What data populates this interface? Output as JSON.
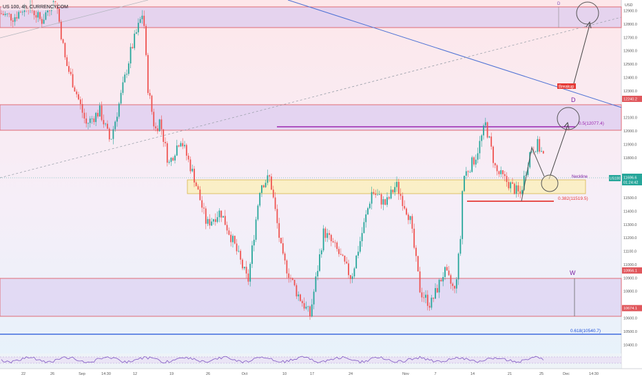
{
  "header": {
    "symbol_title": "US 100, 4h, CURRENCYCOM"
  },
  "price_axis": {
    "currency": "USD",
    "ticks": [
      "12900.0",
      "12800.0",
      "12700.0",
      "12600.0",
      "12500.0",
      "12400.0",
      "12300.0",
      "12100.0",
      "12000.0",
      "11900.0",
      "11800.0",
      "11500.0",
      "11400.0",
      "11300.0",
      "11200.0",
      "11100.0",
      "11000.0",
      "10900.0",
      "10800.0",
      "10600.0",
      "10500.0",
      "10400.0"
    ],
    "price_badges": [
      {
        "label": "12240.2",
        "value": 12240.2,
        "color": "#e0565b"
      },
      {
        "label": "10956.1",
        "value": 10956.1,
        "color": "#e0565b"
      },
      {
        "label": "10674.1",
        "value": 10674.1,
        "color": "#e0565b"
      }
    ],
    "current_price": {
      "symbol": "US100",
      "price": "11696.6",
      "countdown": "01:24:42",
      "value": 11696.6,
      "color": "#26a69a"
    }
  },
  "time_axis": {
    "ticks": [
      "22",
      "26",
      "Sep",
      "14:30",
      "12",
      "19",
      "26",
      "Oct",
      "10",
      "17",
      "24",
      "Nov",
      "7",
      "14",
      "21",
      "25",
      "Dec",
      "14:30"
    ]
  },
  "annotations": {
    "breakup_label": "Breakup",
    "point_d_top": "D",
    "point_d": "D",
    "point_w": "W",
    "neckline": "Neckline",
    "fib_05": "0.5(12077.4)",
    "fib_0382": "0.382(11519.5)",
    "fib_0618": "0.618(10540.7)"
  },
  "colors": {
    "bull": "#26a69a",
    "bear": "#ef5350",
    "zone_purple": "#d8c8f0",
    "zone_yellow": "#fbeec1",
    "trendline": "#4a6fd4",
    "fib_purple": "#9c27b0",
    "fib_red": "#e53935",
    "fib_blue": "#1e4fd8"
  },
  "chart_data": {
    "type": "candlestick",
    "title": "US 100, 4h, CURRENCYCOM",
    "x_ticks": [
      "22",
      "26",
      "Sep",
      "14:30",
      "12",
      "19",
      "26",
      "Oct",
      "10",
      "17",
      "24",
      "Nov",
      "7",
      "14",
      "21",
      "25",
      "Dec",
      "14:30"
    ],
    "ylim": [
      10350,
      12980
    ],
    "series": [
      {
        "name": "US100",
        "anchors": [
          [
            0,
            12880
          ],
          [
            20,
            12850
          ],
          [
            40,
            12950
          ],
          [
            60,
            12820
          ],
          [
            75,
            12960
          ],
          [
            82,
            12950
          ],
          [
            95,
            12520
          ],
          [
            110,
            12300
          ],
          [
            125,
            12050
          ],
          [
            145,
            12150
          ],
          [
            160,
            11920
          ],
          [
            175,
            12250
          ],
          [
            190,
            12600
          ],
          [
            208,
            12900
          ],
          [
            214,
            12350
          ],
          [
            225,
            12000
          ],
          [
            232,
            12080
          ],
          [
            245,
            11750
          ],
          [
            262,
            11950
          ],
          [
            272,
            11800
          ],
          [
            282,
            11650
          ],
          [
            300,
            11300
          ],
          [
            320,
            11400
          ],
          [
            340,
            11150
          ],
          [
            360,
            10870
          ],
          [
            378,
            11600
          ],
          [
            392,
            11650
          ],
          [
            410,
            11050
          ],
          [
            430,
            10800
          ],
          [
            450,
            10620
          ],
          [
            470,
            11250
          ],
          [
            490,
            11100
          ],
          [
            510,
            10900
          ],
          [
            540,
            11550
          ],
          [
            560,
            11450
          ],
          [
            575,
            11600
          ],
          [
            595,
            11350
          ],
          [
            610,
            10800
          ],
          [
            625,
            10700
          ],
          [
            645,
            10950
          ],
          [
            660,
            10800
          ],
          [
            668,
            11150
          ],
          [
            672,
            11650
          ],
          [
            690,
            11800
          ],
          [
            705,
            12050
          ],
          [
            720,
            11700
          ],
          [
            740,
            11600
          ],
          [
            755,
            11520
          ],
          [
            770,
            11850
          ],
          [
            780,
            11900
          ],
          [
            790,
            11800
          ]
        ]
      }
    ],
    "zones": [
      {
        "type": "resistance",
        "from": 12820,
        "to": 12980
      },
      {
        "type": "resistance",
        "from": 12040,
        "to": 12240.2
      },
      {
        "type": "neckline-zone",
        "from": 11580,
        "to": 11690
      },
      {
        "type": "support",
        "from": 10674.1,
        "to": 10956.1
      }
    ],
    "fibonacci": [
      {
        "level": 0.5,
        "price": 12077.4
      },
      {
        "level": 0.382,
        "price": 11519.5
      },
      {
        "level": 0.618,
        "price": 10540.7
      }
    ],
    "grid": false
  }
}
